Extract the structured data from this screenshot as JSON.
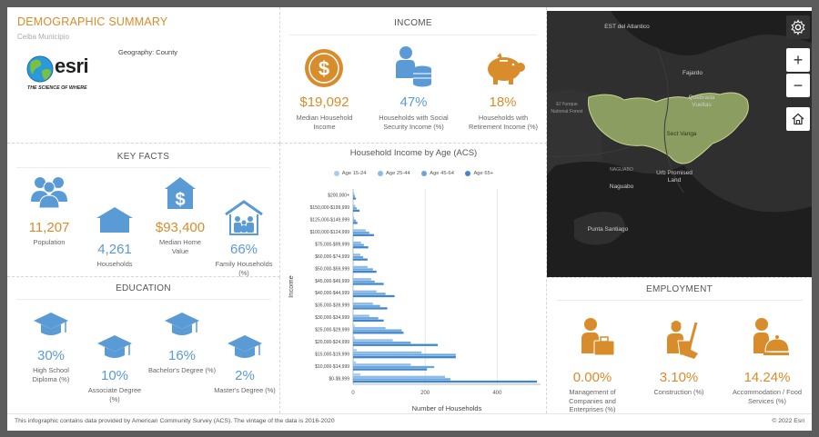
{
  "header": {
    "title": "DEMOGRAPHIC SUMMARY",
    "subtitle": "Ceiba Municipio",
    "geography": "Geography: County",
    "logo_text": "esri",
    "logo_tagline": "THE SCIENCE OF WHERE"
  },
  "income": {
    "title": "INCOME",
    "items": [
      {
        "value": "$19,092",
        "label": "Median Household Income",
        "icon": "dollar-coin-icon"
      },
      {
        "value": "47%",
        "label": "Households with Social Security Income (%)",
        "icon": "person-coins-icon"
      },
      {
        "value": "18%",
        "label": "Households with Retirement Income (%)",
        "icon": "piggy-bank-icon"
      }
    ]
  },
  "key_facts": {
    "title": "KEY FACTS",
    "items": [
      {
        "value": "11,207",
        "label": "Population",
        "icon": "people-icon"
      },
      {
        "value": "4,261",
        "label": "Households",
        "icon": "house-icon"
      },
      {
        "value": "$93,400",
        "label": "Median Home Value",
        "icon": "house-dollar-icon"
      },
      {
        "value": "66%",
        "label": "Family Households (%)",
        "icon": "family-house-icon"
      }
    ]
  },
  "education": {
    "title": "EDUCATION",
    "items": [
      {
        "value": "30%",
        "label": "High School Diploma (%)",
        "icon": "graduation-cap-icon"
      },
      {
        "value": "10%",
        "label": "Associate Degree (%)",
        "icon": "graduation-cap-icon"
      },
      {
        "value": "16%",
        "label": "Bachelor's Degree (%)",
        "icon": "graduation-cap-icon"
      },
      {
        "value": "2%",
        "label": "Master's Degree (%)",
        "icon": "graduation-cap-icon"
      }
    ]
  },
  "employment": {
    "title": "EMPLOYMENT",
    "items": [
      {
        "value": "0.00%",
        "label": "Management of Companies and Enterprises (%)",
        "icon": "briefcase-worker-icon"
      },
      {
        "value": "3.10%",
        "label": "Construction (%)",
        "icon": "construction-worker-icon"
      },
      {
        "value": "14.24%",
        "label": "Accommodation / Food Services (%)",
        "icon": "food-service-icon"
      }
    ]
  },
  "map": {
    "labels": {
      "este_del_atlantico": "EST del Atlantico",
      "fajardo": "Fajardo",
      "quebrada_vueltas": "Quebrada Vueltas",
      "el_yunque": "El Yunque National Forest",
      "sect_vanga": "Sect Vanga",
      "urb_promised": "Urb Promised Land",
      "naguabo": "Naguabo",
      "naguabo_road": "NAGUABO",
      "punta_santiago": "Punta Santiago"
    },
    "buttons": {
      "settings": "settings",
      "zoom_in": "+",
      "zoom_out": "−",
      "home": "home"
    },
    "colors": {
      "land": "#2f2f2f",
      "water": "#1f1f1f",
      "highlight": "#9bb06a"
    }
  },
  "footer": {
    "note": "This infographic contains data provided by American Community Survey (ACS). The vintage of the data is 2016-2020",
    "copyright": "© 2022 Esri"
  },
  "chart_data": {
    "type": "bar",
    "orientation": "horizontal",
    "title": "Household Income by Age (ACS)",
    "xlabel": "Number of Households",
    "ylabel": "Income",
    "xlim": [
      0,
      520
    ],
    "xticks": [
      "0",
      "200",
      "400"
    ],
    "legend_position": "top",
    "categories": [
      "$200,000+",
      "$150,000-$199,999",
      "$125,000-$149,999",
      "$100,000-$124,999",
      "$75,000-$99,999",
      "$60,000-$74,999",
      "$50,000-$59,999",
      "$45,000-$49,999",
      "$40,000-$44,999",
      "$35,000-$39,999",
      "$30,000-$34,999",
      "$25,000-$29,999",
      "$20,000-$24,999",
      "$15,000-$19,999",
      "$10,000-$14,999",
      "$0-$9,999"
    ],
    "series": [
      {
        "name": "Age 15-24",
        "color": "#a9cdef",
        "values": [
          0,
          0,
          0,
          0,
          0,
          0,
          0,
          0,
          0,
          0,
          0,
          5,
          5,
          10,
          8,
          20
        ]
      },
      {
        "name": "Age 25-44",
        "color": "#8dbbe6",
        "values": [
          3,
          6,
          3,
          35,
          22,
          20,
          40,
          50,
          65,
          55,
          45,
          90,
          110,
          190,
          160,
          255
        ]
      },
      {
        "name": "Age 45-64",
        "color": "#6aa6dc",
        "values": [
          5,
          10,
          8,
          45,
          30,
          28,
          55,
          60,
          90,
          75,
          70,
          135,
          160,
          285,
          225,
          270
        ]
      },
      {
        "name": "Age 65+",
        "color": "#3f86cc",
        "values": [
          8,
          18,
          12,
          58,
          42,
          40,
          65,
          85,
          115,
          95,
          85,
          140,
          235,
          285,
          205,
          510
        ]
      }
    ]
  }
}
